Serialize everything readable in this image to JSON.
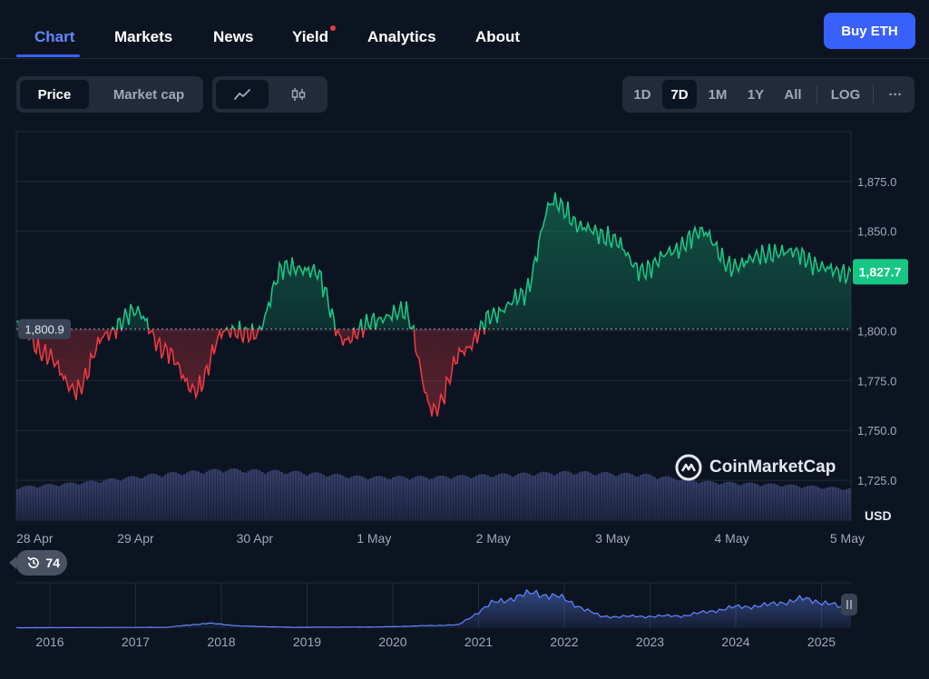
{
  "nav": {
    "items": [
      "Chart",
      "Markets",
      "News",
      "Yield",
      "Analytics",
      "About"
    ],
    "active": "Chart",
    "buy_label": "Buy ETH"
  },
  "toolbar": {
    "metric_options": [
      "Price",
      "Market cap"
    ],
    "metric_selected": "Price",
    "chart_type_options": [
      "line-chart-icon",
      "candlestick-icon"
    ],
    "ranges": [
      "1D",
      "7D",
      "1M",
      "1Y",
      "All"
    ],
    "range_selected": "7D",
    "log_label": "LOG",
    "more_label": "···"
  },
  "watermark": "CoinMarketCap",
  "navigator": {
    "badge_value": "74",
    "years": [
      "2016",
      "2017",
      "2018",
      "2019",
      "2020",
      "2021",
      "2022",
      "2023",
      "2024",
      "2025"
    ]
  },
  "colors": {
    "up": "#16c784",
    "down": "#ea3943",
    "accent": "#3861fb",
    "navigator_line": "#6188ff"
  },
  "chart_data": {
    "type": "area",
    "series": [
      {
        "x": [
          "28 Apr",
          "28 Apr 06:00",
          "28 Apr 12:00",
          "28 Apr 18:00",
          "29 Apr",
          "29 Apr 06:00",
          "29 Apr 12:00",
          "29 Apr 18:00",
          "30 Apr",
          "30 Apr 06:00",
          "30 Apr 12:00",
          "30 Apr 18:00",
          "1 May",
          "1 May 06:00",
          "1 May 12:00",
          "1 May 18:00",
          "2 May",
          "2 May 06:00",
          "2 May 12:00",
          "2 May 18:00",
          "3 May",
          "3 May 06:00",
          "3 May 12:00",
          "3 May 18:00",
          "4 May",
          "4 May 06:00",
          "4 May 12:00",
          "4 May 18:00",
          "5 May"
        ],
        "values": [
          1803,
          1788,
          1770,
          1798,
          1810,
          1790,
          1770,
          1800,
          1798,
          1832,
          1830,
          1795,
          1805,
          1810,
          1760,
          1790,
          1808,
          1818,
          1865,
          1852,
          1846,
          1830,
          1840,
          1850,
          1832,
          1838,
          1840,
          1832,
          1828
        ]
      }
    ],
    "baseline": 1800.9,
    "last_price": "1,827.7",
    "baseline_label": "1,800.9",
    "ylim": [
      1705,
      1900
    ],
    "y_ticks": [
      "1,875.0",
      "1,850.0",
      "1,800.0",
      "1,775.0",
      "1,750.0",
      "1,725.0"
    ],
    "x_ticks": [
      "28 Apr",
      "29 Apr",
      "30 Apr",
      "1 May",
      "2 May",
      "3 May",
      "4 May",
      "5 May"
    ],
    "ylabel": "USD",
    "volume": [
      0.65,
      0.75,
      0.9,
      1.0,
      0.95,
      0.85,
      0.85,
      0.9,
      0.95,
      0.9,
      0.75,
      0.7,
      0.62
    ]
  }
}
